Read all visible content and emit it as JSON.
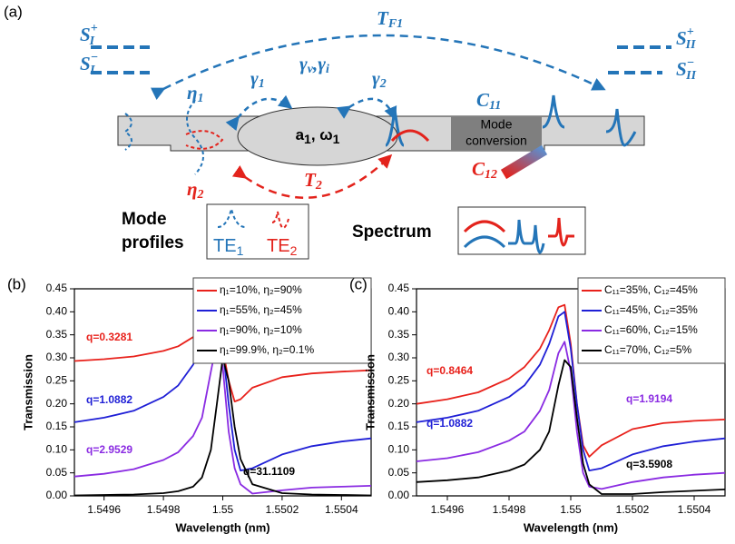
{
  "diagram": {
    "label": "(a)",
    "s_i_plus": {
      "base": "S",
      "sub": "I",
      "sup": "+"
    },
    "s_i_minus": {
      "base": "S",
      "sub": "I",
      "sup": "−"
    },
    "s_ii_plus": {
      "base": "S",
      "sub": "II",
      "sup": "+"
    },
    "s_ii_minus": {
      "base": "S",
      "sub": "II",
      "sup": "−"
    },
    "t_f1": {
      "base": "T",
      "sub": "F1"
    },
    "eta1": {
      "base": "η",
      "sub": "1"
    },
    "eta2": {
      "base": "η",
      "sub": "2"
    },
    "gamma1": {
      "base": "γ",
      "sub": "1"
    },
    "gamma_vi": {
      "base1": "γ",
      "sub1": "v",
      "sep": ",",
      "base2": "γ",
      "sub2": "i"
    },
    "gamma2": {
      "base": "γ",
      "sub": "2"
    },
    "c11": {
      "base": "C",
      "sub": "11"
    },
    "c12": {
      "base": "C",
      "sub": "12"
    },
    "cavity": {
      "a": "a",
      "a_sub": "1",
      "sep": ", ω",
      "w_sub": "1"
    },
    "mode_conversion": [
      "Mode",
      "conversion"
    ],
    "t2": {
      "base": "T",
      "sub": "2"
    },
    "mode_profiles": [
      "Mode",
      "profiles"
    ],
    "te1": {
      "base": "TE",
      "sub": "1"
    },
    "te2": {
      "base": "TE",
      "sub": "2"
    },
    "spectrum": "Spectrum"
  },
  "chart_data": [
    {
      "type": "line",
      "panel_label": "(b)",
      "x_label": "Wavelength (nm)",
      "y_label": "Transmission",
      "x": [
        1.5495,
        1.5496,
        1.5497,
        1.5498,
        1.54985,
        1.5499,
        1.54993,
        1.54996,
        1.54998,
        1.55,
        1.55002,
        1.55004,
        1.55006,
        1.5501,
        1.5502,
        1.5503,
        1.5504,
        1.5505
      ],
      "xlim": [
        1.5495,
        1.5505
      ],
      "xticks": [
        1.5496,
        1.5498,
        1.55,
        1.5502,
        1.5504
      ],
      "ylim": [
        0,
        0.45
      ],
      "yticks": [
        {
          "value": 0,
          "label": "0.00"
        },
        0.05,
        {
          "value": 0.1,
          "label": "0.10"
        },
        0.15,
        {
          "value": 0.2,
          "label": "0.20"
        },
        0.25,
        {
          "value": 0.3,
          "label": "0.30"
        },
        0.35,
        {
          "value": 0.4,
          "label": "0.40"
        },
        0.45
      ],
      "legend": "upper right",
      "series": [
        {
          "name": "η₁=10%, η₂=90%",
          "color": "#e8211b",
          "annotation": "q=0.3281",
          "values": [
            0.293,
            0.297,
            0.303,
            0.315,
            0.325,
            0.345,
            0.365,
            0.39,
            0.375,
            0.32,
            0.25,
            0.205,
            0.21,
            0.235,
            0.258,
            0.266,
            0.27,
            0.273
          ]
        },
        {
          "name": "η₁=55%, η₂=45%",
          "color": "#1f1fd6",
          "annotation": "q=1.0882",
          "values": [
            0.16,
            0.17,
            0.185,
            0.215,
            0.24,
            0.285,
            0.33,
            0.39,
            0.4,
            0.32,
            0.2,
            0.1,
            0.055,
            0.06,
            0.09,
            0.108,
            0.118,
            0.125
          ]
        },
        {
          "name": "η₁=90%, η₂=10%",
          "color": "#8a2be2",
          "annotation": "q=2.9529",
          "values": [
            0.042,
            0.048,
            0.058,
            0.078,
            0.095,
            0.13,
            0.17,
            0.27,
            0.335,
            0.28,
            0.14,
            0.06,
            0.025,
            0.005,
            0.012,
            0.018,
            0.02,
            0.022
          ]
        },
        {
          "name": "η₁=99.9%, η₂=0.1%",
          "color": "#000000",
          "annotation": "q=31.1109",
          "values": [
            0.001,
            0.002,
            0.003,
            0.006,
            0.01,
            0.02,
            0.04,
            0.1,
            0.2,
            0.3,
            0.25,
            0.15,
            0.08,
            0.025,
            0.006,
            0.003,
            0.002,
            0.001
          ]
        }
      ]
    },
    {
      "type": "line",
      "panel_label": "(c)",
      "x_label": "Wavelength (nm)",
      "y_label": "Transmission",
      "x": [
        1.5495,
        1.5496,
        1.5497,
        1.5498,
        1.54985,
        1.5499,
        1.54993,
        1.54996,
        1.54998,
        1.55,
        1.55002,
        1.55004,
        1.55006,
        1.5501,
        1.5502,
        1.5503,
        1.5504,
        1.5505
      ],
      "xlim": [
        1.5495,
        1.5505
      ],
      "xticks": [
        1.5496,
        1.5498,
        1.55,
        1.5502,
        1.5504
      ],
      "ylim": [
        0,
        0.45
      ],
      "yticks": [
        {
          "value": 0,
          "label": "0.00"
        },
        0.05,
        {
          "value": 0.1,
          "label": "0.10"
        },
        0.15,
        {
          "value": 0.2,
          "label": "0.20"
        },
        0.25,
        {
          "value": 0.3,
          "label": "0.30"
        },
        0.35,
        {
          "value": 0.4,
          "label": "0.40"
        },
        0.45
      ],
      "legend": "upper right",
      "series": [
        {
          "name": "C₁₁=35%, C₁₂=45%",
          "color": "#e8211b",
          "annotation": "q=0.8464",
          "values": [
            0.2,
            0.21,
            0.225,
            0.255,
            0.28,
            0.32,
            0.36,
            0.41,
            0.415,
            0.33,
            0.2,
            0.11,
            0.085,
            0.11,
            0.145,
            0.158,
            0.163,
            0.166
          ]
        },
        {
          "name": "C₁₁=45%, C₁₂=35%",
          "color": "#1f1fd6",
          "annotation": "q=1.0882",
          "values": [
            0.16,
            0.17,
            0.185,
            0.215,
            0.24,
            0.285,
            0.33,
            0.39,
            0.4,
            0.32,
            0.2,
            0.1,
            0.055,
            0.06,
            0.09,
            0.108,
            0.118,
            0.125
          ]
        },
        {
          "name": "C₁₁=60%, C₁₂=15%",
          "color": "#8a2be2",
          "annotation": "q=1.9194",
          "values": [
            0.075,
            0.082,
            0.095,
            0.12,
            0.14,
            0.185,
            0.23,
            0.31,
            0.335,
            0.27,
            0.14,
            0.05,
            0.02,
            0.015,
            0.03,
            0.04,
            0.046,
            0.05
          ]
        },
        {
          "name": "C₁₁=70%, C₁₂=5%",
          "color": "#000000",
          "annotation": "q=3.5908",
          "values": [
            0.03,
            0.034,
            0.04,
            0.055,
            0.068,
            0.1,
            0.14,
            0.24,
            0.295,
            0.28,
            0.17,
            0.07,
            0.025,
            0.004,
            0.004,
            0.008,
            0.011,
            0.014
          ]
        }
      ]
    }
  ]
}
